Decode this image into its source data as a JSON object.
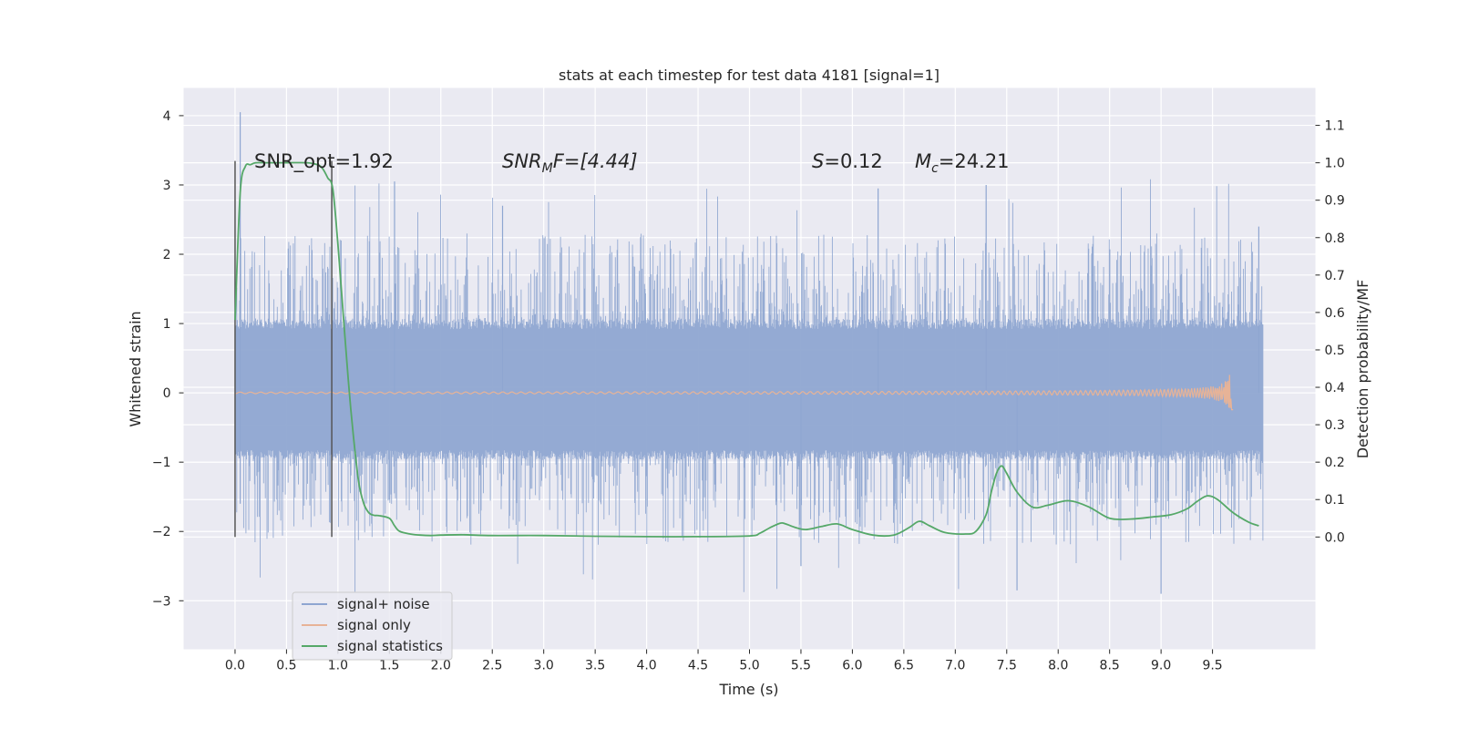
{
  "chart_data": {
    "type": "line",
    "title": "stats at each timestep for test data 4181 [signal=1]",
    "xlabel": "Time (s)",
    "ylabel": "Whitened strain",
    "ylabel_right": "Detection probability/MF",
    "xlim": [
      -0.5,
      10.5
    ],
    "ylim": [
      -3.7,
      4.4
    ],
    "ylim_right": [
      -0.3,
      1.2
    ],
    "xticks": [
      0.0,
      0.5,
      1.0,
      1.5,
      2.0,
      2.5,
      3.0,
      3.5,
      4.0,
      4.5,
      5.0,
      5.5,
      6.0,
      6.5,
      7.0,
      7.5,
      8.0,
      8.5,
      9.0,
      9.5
    ],
    "xtick_labels": [
      "0.0",
      "0.5",
      "1.0",
      "1.5",
      "2.0",
      "2.5",
      "3.0",
      "3.5",
      "4.0",
      "4.5",
      "5.0",
      "5.5",
      "6.0",
      "6.5",
      "7.0",
      "7.5",
      "8.0",
      "8.5",
      "9.0",
      "9.5"
    ],
    "yticks": [
      4,
      3,
      2,
      1,
      0,
      -1,
      -2,
      -3
    ],
    "ytick_labels": [
      "4",
      "3",
      "2",
      "1",
      "0",
      "−1",
      "−2",
      "−3"
    ],
    "yticks_right": [
      1.1,
      1.0,
      0.9,
      0.8,
      0.7,
      0.6,
      0.5,
      0.4,
      0.3,
      0.2,
      0.1,
      0.0
    ],
    "ytick_right_labels": [
      "1.1",
      "1.0",
      "0.9",
      "0.8",
      "0.7",
      "0.6",
      "0.5",
      "0.4",
      "0.3",
      "0.2",
      "0.1",
      "0.0"
    ],
    "grid": true,
    "legend_position": "lower-left",
    "annotations": {
      "snr_opt": "SNR_opt=1.92",
      "snr_mf_main": "SNR",
      "snr_mf_sub": "M",
      "snr_mf_tail": "F=[4.44]",
      "s_main": "S",
      "s_tail": "=0.12",
      "mc_main": "M",
      "mc_sub": "c",
      "mc_tail": "=24.21"
    },
    "vlines": [
      0.0,
      0.94
    ],
    "series": [
      {
        "name": "signal+ noise",
        "color": "#8fa6d1",
        "t_range": [
          0.0,
          9.99
        ],
        "core_range": [
          -0.9,
          1.0
        ],
        "spike_max": 4.05,
        "spike_min": -2.9
      },
      {
        "name": "signal only",
        "color": "#dd8452",
        "t_range": [
          0.0,
          9.7
        ],
        "chirp_peak_time": 9.68,
        "chirp_amplitude": 0.35
      },
      {
        "name": "signal statistics",
        "color": "#55a868",
        "axis": "right",
        "x": [
          0.0,
          0.05,
          0.1,
          0.15,
          0.2,
          0.3,
          0.5,
          0.7,
          0.8,
          0.85,
          0.9,
          0.95,
          1.0,
          1.05,
          1.1,
          1.15,
          1.2,
          1.25,
          1.3,
          1.35,
          1.4,
          1.5,
          1.55,
          1.6,
          1.7,
          1.8,
          1.9,
          2.0,
          2.2,
          2.5,
          3.0,
          3.5,
          4.0,
          4.5,
          5.0,
          5.1,
          5.2,
          5.3,
          5.35,
          5.45,
          5.55,
          5.7,
          5.85,
          6.0,
          6.2,
          6.4,
          6.55,
          6.65,
          6.75,
          6.9,
          7.1,
          7.2,
          7.3,
          7.35,
          7.4,
          7.45,
          7.5,
          7.6,
          7.75,
          7.9,
          8.1,
          8.3,
          8.5,
          8.7,
          8.9,
          9.1,
          9.25,
          9.35,
          9.45,
          9.55,
          9.7,
          9.85,
          9.95
        ],
        "y": [
          0.58,
          0.92,
          0.99,
          0.995,
          1.0,
          1.0,
          1.0,
          1.0,
          0.995,
          0.985,
          0.96,
          0.93,
          0.78,
          0.6,
          0.42,
          0.27,
          0.15,
          0.09,
          0.065,
          0.058,
          0.057,
          0.05,
          0.03,
          0.015,
          0.008,
          0.005,
          0.004,
          0.005,
          0.006,
          0.004,
          0.004,
          0.002,
          0.001,
          0.001,
          0.003,
          0.01,
          0.025,
          0.037,
          0.035,
          0.025,
          0.02,
          0.028,
          0.035,
          0.02,
          0.005,
          0.005,
          0.025,
          0.042,
          0.03,
          0.012,
          0.008,
          0.015,
          0.06,
          0.12,
          0.17,
          0.19,
          0.17,
          0.12,
          0.08,
          0.085,
          0.097,
          0.08,
          0.05,
          0.048,
          0.053,
          0.06,
          0.075,
          0.095,
          0.11,
          0.1,
          0.065,
          0.04,
          0.03
        ]
      }
    ]
  }
}
